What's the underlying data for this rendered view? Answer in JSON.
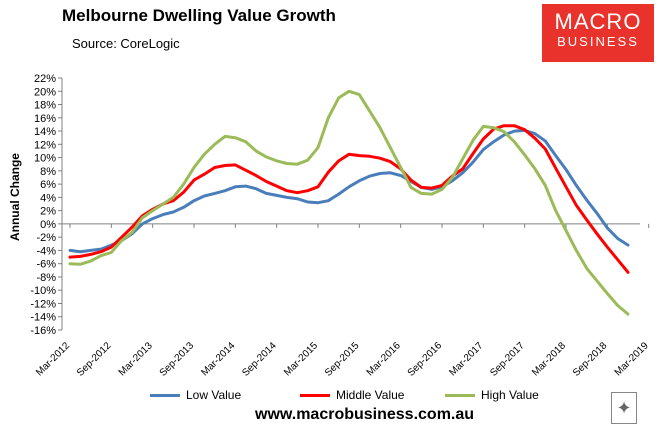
{
  "title": "Melbourne Dwelling Value Growth",
  "source": "Source: CoreLogic",
  "logo": {
    "line1": "MACRO",
    "line2": "BUSINESS",
    "color": "#e8322b"
  },
  "website": "www.macrobusiness.com.au",
  "fox_icon": "fox-emblem-icon",
  "chart_data": {
    "type": "line",
    "title": "Melbourne Dwelling Value Growth",
    "xlabel": "",
    "ylabel": "Annual Change",
    "ylim": [
      -16,
      22
    ],
    "ystep": 2,
    "yticks": [
      "22%",
      "20%",
      "18%",
      "16%",
      "14%",
      "12%",
      "10%",
      "8%",
      "6%",
      "4%",
      "2%",
      "0%",
      "-2%",
      "-4%",
      "-6%",
      "-8%",
      "-10%",
      "-12%",
      "-14%",
      "-16%"
    ],
    "xticks": [
      "Mar-2012",
      "Sep-2012",
      "Mar-2013",
      "Sep-2013",
      "Mar-2014",
      "Sep-2014",
      "Mar-2015",
      "Sep-2015",
      "Mar-2016",
      "Sep-2016",
      "Mar-2017",
      "Sep-2017",
      "Mar-2018",
      "Sep-2018",
      "Mar-2019"
    ],
    "x_start": "Mar-2012",
    "x_end": "Jun-2019",
    "grid": false,
    "legend_position": "bottom",
    "series": [
      {
        "name": "Low Value",
        "color": "#4a7ebb",
        "values": [
          -4.0,
          -4.2,
          -4.0,
          -3.8,
          -3.2,
          -2.5,
          -1.5,
          0.0,
          0.8,
          1.4,
          1.8,
          2.5,
          3.5,
          4.2,
          4.6,
          5.0,
          5.6,
          5.7,
          5.3,
          4.6,
          4.3,
          4.0,
          3.8,
          3.3,
          3.2,
          3.5,
          4.5,
          5.6,
          6.5,
          7.2,
          7.6,
          7.7,
          7.3,
          6.4,
          5.5,
          5.2,
          5.6,
          6.5,
          7.7,
          9.3,
          11.2,
          12.4,
          13.4,
          14.0,
          14.1,
          13.6,
          12.5,
          10.3,
          8.2,
          5.8,
          3.6,
          1.6,
          -0.6,
          -2.2,
          -3.2
        ]
      },
      {
        "name": "Middle Value",
        "color": "#ff0000",
        "values": [
          -5.0,
          -4.9,
          -4.6,
          -4.2,
          -3.5,
          -2.0,
          -0.5,
          1.2,
          2.2,
          3.0,
          3.5,
          4.8,
          6.6,
          7.5,
          8.5,
          8.8,
          8.9,
          8.1,
          7.3,
          6.4,
          5.7,
          5.0,
          4.7,
          5.0,
          5.6,
          7.8,
          9.5,
          10.5,
          10.3,
          10.2,
          9.9,
          9.4,
          8.3,
          6.6,
          5.5,
          5.4,
          5.8,
          7.2,
          8.3,
          10.6,
          12.8,
          14.3,
          14.8,
          14.8,
          14.2,
          12.9,
          11.3,
          8.4,
          5.6,
          2.8,
          0.6,
          -1.5,
          -3.5,
          -5.4,
          -7.3
        ]
      },
      {
        "name": "High Value",
        "color": "#9bbb59",
        "values": [
          -6.0,
          -6.1,
          -5.6,
          -4.8,
          -4.3,
          -2.5,
          -1.3,
          0.9,
          2.0,
          3.0,
          4.0,
          6.0,
          8.5,
          10.5,
          12.0,
          13.2,
          13.0,
          12.4,
          11.0,
          10.1,
          9.5,
          9.1,
          9.0,
          9.6,
          11.5,
          16.0,
          19.0,
          20.0,
          19.5,
          17.0,
          14.5,
          11.5,
          8.5,
          5.5,
          4.6,
          4.5,
          5.2,
          7.0,
          9.8,
          12.6,
          14.7,
          14.5,
          13.9,
          12.4,
          10.4,
          8.3,
          5.8,
          2.0,
          -1.0,
          -4.0,
          -6.7,
          -8.6,
          -10.5,
          -12.3,
          -13.6
        ]
      }
    ]
  }
}
